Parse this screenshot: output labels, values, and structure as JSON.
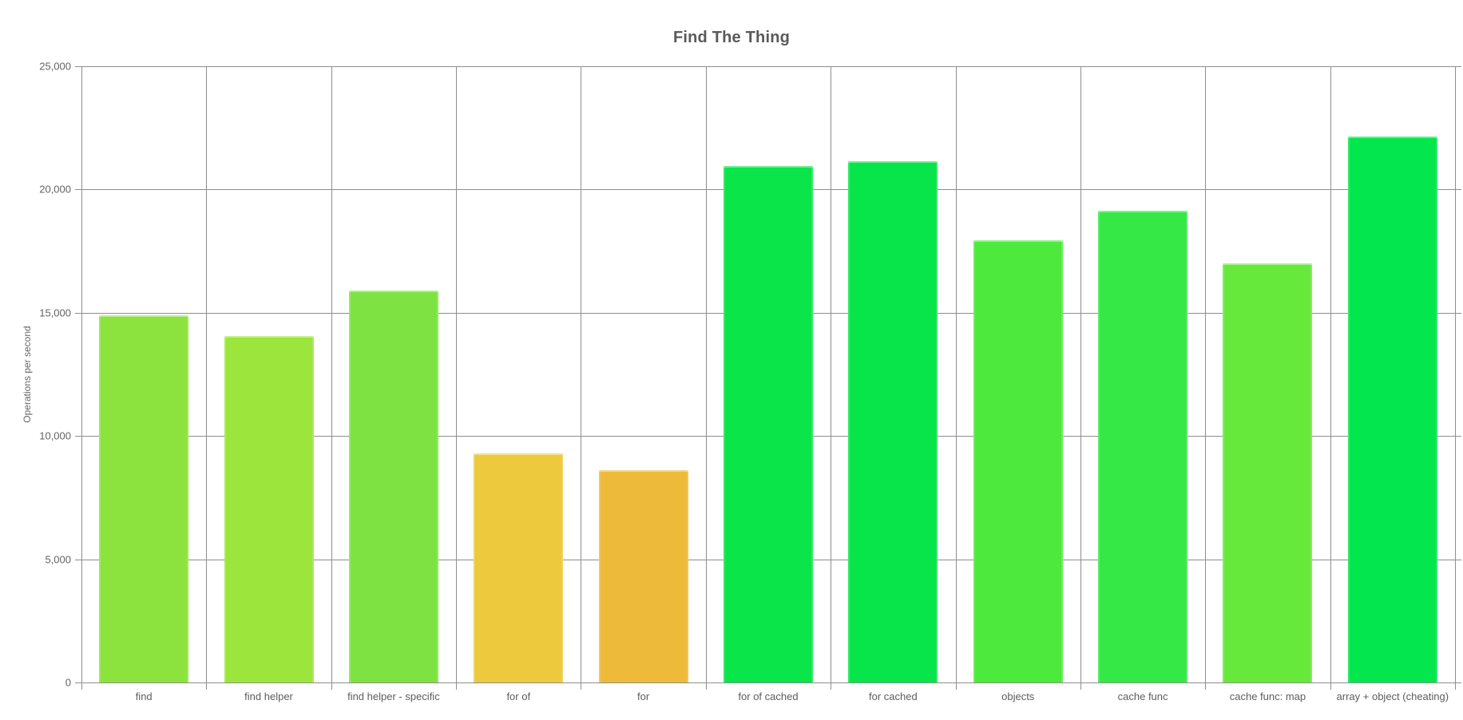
{
  "chart_data": {
    "type": "bar",
    "title": "Find The Thing",
    "xlabel": "",
    "ylabel": "Operations per second",
    "categories": [
      "find",
      "find helper",
      "find helper - specific",
      "for of",
      "for",
      "for of cached",
      "for cached",
      "objects",
      "cache func",
      "cache func: map",
      "array + object (cheating)"
    ],
    "values": [
      14900,
      14050,
      15900,
      9300,
      8600,
      20950,
      21150,
      17950,
      19150,
      17000,
      22150
    ],
    "bar_colors": [
      "#8ce33e",
      "#9ce53c",
      "#7ee342",
      "#edc93e",
      "#eeba3a",
      "#0ae54a",
      "#08e54b",
      "#4de93d",
      "#35e845",
      "#66e93a",
      "#04e64d"
    ],
    "ylim": [
      0,
      25000
    ],
    "yticks": [
      0,
      5000,
      10000,
      15000,
      20000,
      25000
    ],
    "ytick_labels": [
      "0",
      "5,000",
      "10,000",
      "15,000",
      "20,000",
      "25,000"
    ],
    "grid": true,
    "legend": "none",
    "colors": {
      "gridline": "#8e8e8e",
      "axis_text": "#636363",
      "title_text": "#58595b"
    }
  }
}
